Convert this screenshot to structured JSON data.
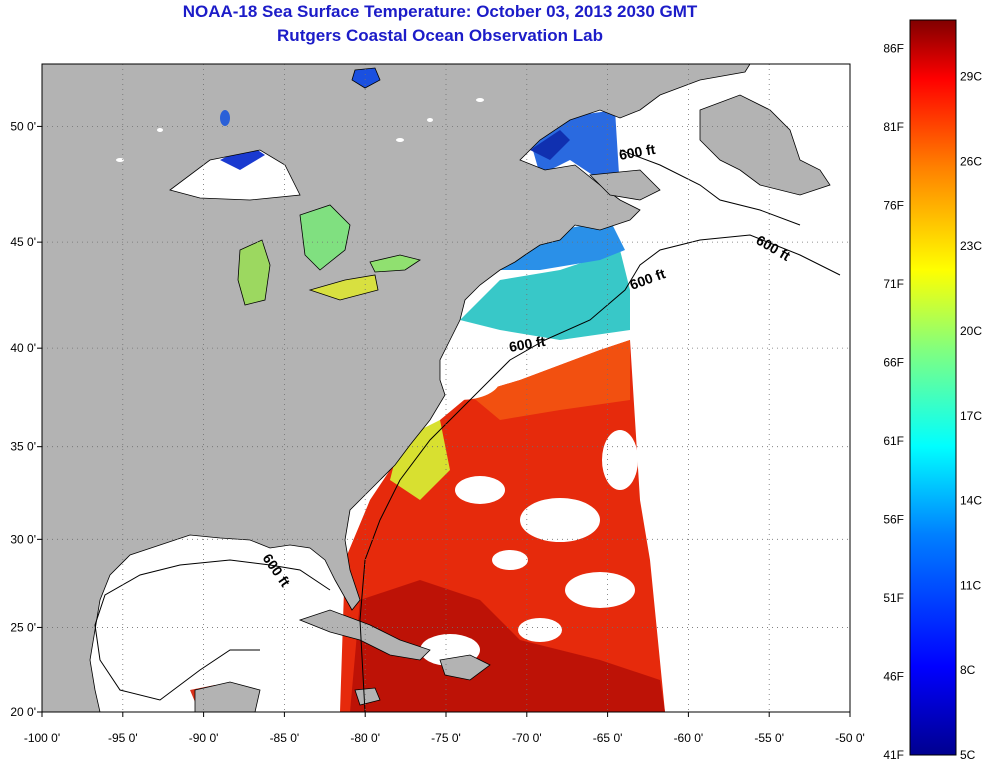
{
  "header": {
    "title": "NOAA-18 Sea Surface Temperature:  October 03, 2013 2030 GMT",
    "subtitle": "Rutgers Coastal Ocean Observation Lab"
  },
  "map": {
    "lon_ticks": [
      "-100 0'",
      "-95 0'",
      "-90 0'",
      "-85 0'",
      "-80 0'",
      "-75 0'",
      "-70 0'",
      "-65 0'",
      "-60 0'",
      "-55 0'",
      "-50 0'"
    ],
    "lat_ticks": [
      "50 0'",
      "45 0'",
      "40 0'",
      "35 0'",
      "30 0'",
      "25 0'",
      "20 0'"
    ],
    "contour_labels": [
      "600 ft",
      "600 ft",
      "600 ft",
      "600 ft",
      "600 ft"
    ],
    "colors": {
      "land": "#b3b3b3",
      "ocean_nodata": "#ffffff",
      "grid": "#707070"
    }
  },
  "colorbar": {
    "labels_f": [
      "86F",
      "81F",
      "76F",
      "71F",
      "66F",
      "61F",
      "56F",
      "51F",
      "46F",
      "41F"
    ],
    "labels_c": [
      "29C",
      "26C",
      "23C",
      "20C",
      "17C",
      "14C",
      "11C",
      "8C",
      "5C"
    ],
    "range_c": [
      5,
      31
    ],
    "colormap": [
      "#00008f",
      "#0000ff",
      "#0080ff",
      "#00ffff",
      "#80ff80",
      "#ffff00",
      "#ff8000",
      "#ff0000",
      "#800000"
    ]
  }
}
